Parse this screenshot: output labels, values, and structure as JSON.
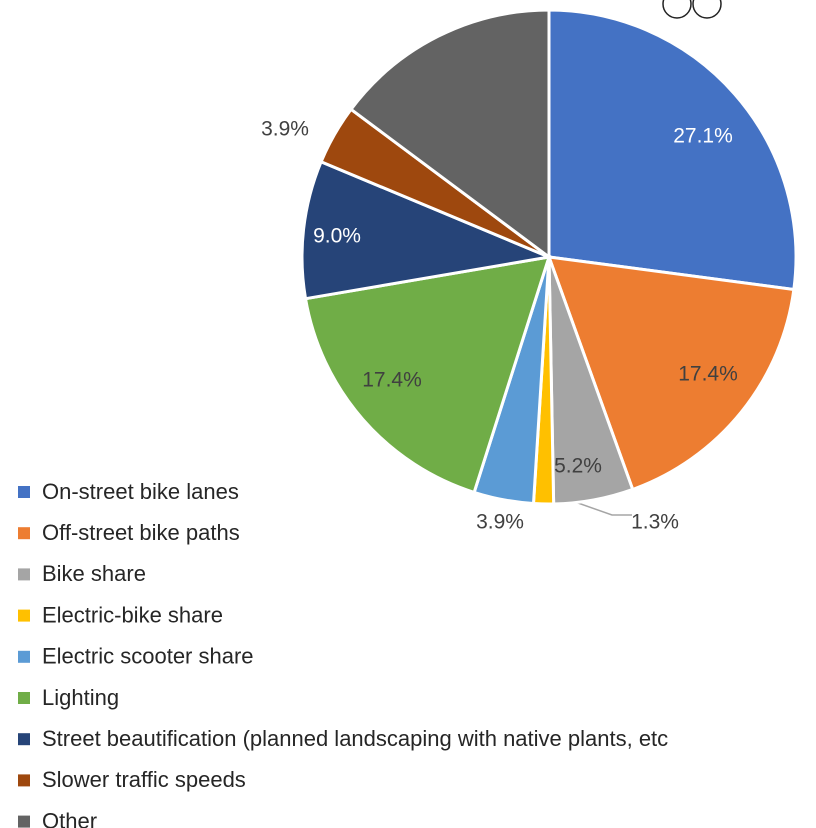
{
  "chart_data": {
    "type": "pie",
    "categories": [
      "On-street bike lanes",
      "Off-street bike paths",
      "Bike share",
      "Electric-bike share",
      "Electric scooter share",
      "Lighting",
      "Street beautification (planned landscaping with native plants, etc",
      "Slower traffic speeds",
      "Other"
    ],
    "values": [
      27.1,
      17.4,
      5.2,
      1.3,
      3.9,
      17.4,
      9.0,
      3.9,
      14.8
    ],
    "value_labels": [
      "27.1%",
      "17.4%",
      "5.2%",
      "1.3%",
      "3.9%",
      "17.4%",
      "9.0%",
      "3.9%",
      null
    ],
    "colors": [
      "#4472c4",
      "#ed7d31",
      "#a5a5a5",
      "#ffc000",
      "#5b9bd5",
      "#70ad47",
      "#264478",
      "#9e480e",
      "#636363"
    ],
    "legend": "bottom-left"
  }
}
